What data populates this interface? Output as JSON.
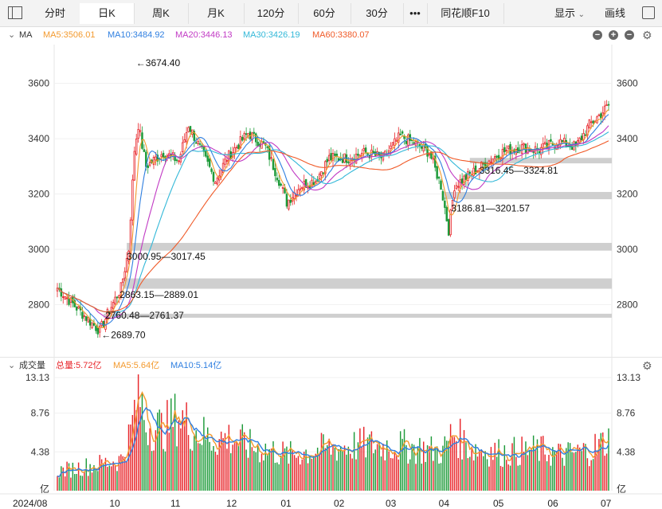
{
  "toolbar": {
    "tabs": [
      "分时",
      "日K",
      "周K",
      "月K",
      "120分",
      "60分",
      "30分"
    ],
    "more": "•••",
    "f10": "同花顺F10",
    "display": "显示",
    "draw": "画线"
  },
  "price_legend": {
    "name": "MA",
    "ma5": "MA5:3506.01",
    "ma10": "MA10:3484.92",
    "ma20": "MA20:3446.13",
    "ma30": "MA30:3426.19",
    "ma60": "MA60:3380.07"
  },
  "volume_legend": {
    "name": "成交量",
    "total": "总量:5.72亿",
    "ma5": "MA5:5.64亿",
    "ma10": "MA10:5.14亿"
  },
  "price_axis": {
    "ticks": [
      "3600",
      "3400",
      "3200",
      "3000",
      "2800"
    ]
  },
  "volume_axis": {
    "ticks": [
      "13.13",
      "8.76",
      "4.38",
      "亿"
    ]
  },
  "date_axis": [
    "2024/08",
    "10",
    "11",
    "12",
    "01",
    "02",
    "03",
    "04",
    "05",
    "06",
    "07"
  ],
  "annotations": {
    "high": "←3674.40",
    "low": "←2689.70",
    "gap1": "2760.48—2761.37",
    "gap2": "2863.15—2889.01",
    "gap3": "3000.95—3017.45",
    "gap4": "3186.81—3201.57",
    "gap5": "3316.45—3324.81"
  },
  "colors": {
    "up": "#e8262b",
    "down": "#1e9b3a",
    "ma5": "#f39a2e",
    "ma10": "#2f7fe0",
    "ma20": "#c13ac4",
    "ma30": "#33b8d8",
    "ma60": "#f05a28",
    "band": "#cfcfcf"
  },
  "chart_data": {
    "type": "candlestick",
    "price_range": [
      2640,
      3740
    ],
    "volume_range": [
      0,
      13.13
    ],
    "gap_bands": [
      [
        2760.48,
        2761.37
      ],
      [
        2863.15,
        2889.01
      ],
      [
        3000.95,
        3017.45
      ],
      [
        3186.81,
        3201.57
      ],
      [
        3316.45,
        3324.81
      ]
    ],
    "close_waypoints": [
      [
        0,
        2860
      ],
      [
        14,
        2760
      ],
      [
        22,
        2705
      ],
      [
        27,
        2780
      ],
      [
        33,
        2860
      ],
      [
        37,
        3000
      ],
      [
        40,
        3360
      ],
      [
        42,
        3450
      ],
      [
        46,
        3300
      ],
      [
        55,
        3350
      ],
      [
        63,
        3320
      ],
      [
        68,
        3450
      ],
      [
        73,
        3380
      ],
      [
        82,
        3250
      ],
      [
        88,
        3330
      ],
      [
        94,
        3380
      ],
      [
        99,
        3420
      ],
      [
        108,
        3370
      ],
      [
        115,
        3250
      ],
      [
        119,
        3170
      ],
      [
        126,
        3230
      ],
      [
        134,
        3250
      ],
      [
        141,
        3330
      ],
      [
        150,
        3330
      ],
      [
        160,
        3350
      ],
      [
        169,
        3330
      ],
      [
        178,
        3410
      ],
      [
        186,
        3380
      ],
      [
        193,
        3350
      ],
      [
        199,
        3230
      ],
      [
        203,
        3070
      ],
      [
        206,
        3230
      ],
      [
        214,
        3270
      ],
      [
        222,
        3310
      ],
      [
        230,
        3350
      ],
      [
        240,
        3370
      ],
      [
        250,
        3360
      ],
      [
        260,
        3390
      ],
      [
        269,
        3370
      ],
      [
        276,
        3450
      ],
      [
        282,
        3490
      ],
      [
        286,
        3520
      ]
    ],
    "volume_waypoints": [
      [
        0,
        2.2
      ],
      [
        22,
        3.0
      ],
      [
        33,
        3.5
      ],
      [
        38,
        6.5
      ],
      [
        42,
        11.5
      ],
      [
        46,
        7.5
      ],
      [
        55,
        7.0
      ],
      [
        63,
        8.5
      ],
      [
        70,
        7.0
      ],
      [
        80,
        5.8
      ],
      [
        90,
        6.0
      ],
      [
        100,
        5.0
      ],
      [
        110,
        4.6
      ],
      [
        120,
        4.0
      ],
      [
        140,
        4.8
      ],
      [
        160,
        5.2
      ],
      [
        180,
        5.0
      ],
      [
        200,
        4.4
      ],
      [
        205,
        6.5
      ],
      [
        215,
        4.8
      ],
      [
        230,
        4.3
      ],
      [
        250,
        4.6
      ],
      [
        262,
        4.0
      ],
      [
        275,
        4.5
      ],
      [
        286,
        5.72
      ]
    ]
  }
}
